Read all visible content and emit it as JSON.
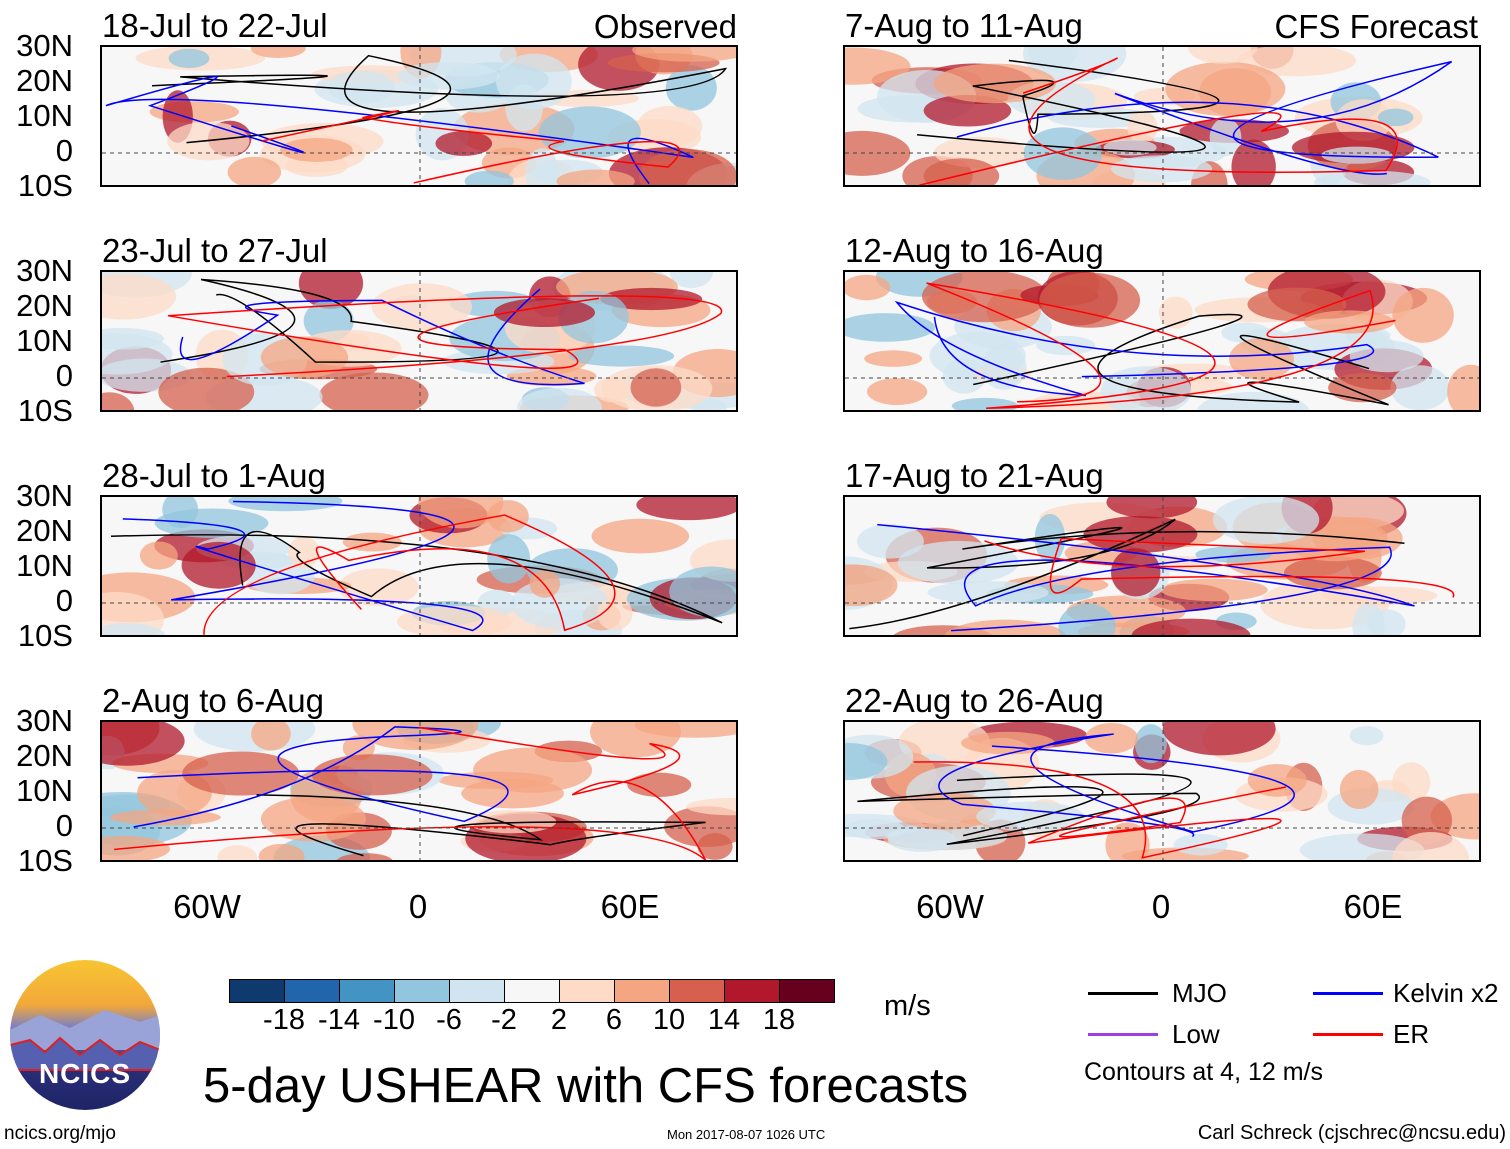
{
  "headers": {
    "observed": "Observed",
    "forecast": "CFS Forecast"
  },
  "panels": {
    "observed": [
      "18-Jul to 22-Jul",
      "23-Jul to 27-Jul",
      "28-Jul to 1-Aug",
      "2-Aug to 6-Aug"
    ],
    "forecast": [
      "7-Aug to 11-Aug",
      "12-Aug to 16-Aug",
      "17-Aug to 21-Aug",
      "22-Aug to 26-Aug"
    ]
  },
  "lat_labels": [
    "30N",
    "20N",
    "10N",
    "0",
    "10S"
  ],
  "lon_labels": [
    "60W",
    "0",
    "60E"
  ],
  "colorbar": {
    "colors": [
      "#0e3a6e",
      "#2166ac",
      "#4393c3",
      "#92c5de",
      "#d1e5f0",
      "#f7f7f7",
      "#fddbc7",
      "#f4a582",
      "#d6604d",
      "#b2182b",
      "#67001f"
    ],
    "ticks": [
      "-18",
      "-14",
      "-10",
      "-6",
      "-2",
      "2",
      "6",
      "10",
      "14",
      "18"
    ],
    "units": "m/s"
  },
  "legend": {
    "items": [
      {
        "label": "MJO",
        "color": "#000000"
      },
      {
        "label": "Kelvin x2",
        "color": "#0000ff"
      },
      {
        "label": "Low",
        "color": "#a040e0"
      },
      {
        "label": "ER",
        "color": "#ff0000"
      }
    ],
    "note": "Contours at 4, 12 m/s"
  },
  "logo_text": "NCICS",
  "title": "5-day USHEAR with CFS forecasts",
  "footer": {
    "url": "ncics.org/mjo",
    "timestamp": "Mon 2017-08-07 1026 UTC",
    "credit": "Carl Schreck (cjschrec@ncsu.edu)"
  }
}
